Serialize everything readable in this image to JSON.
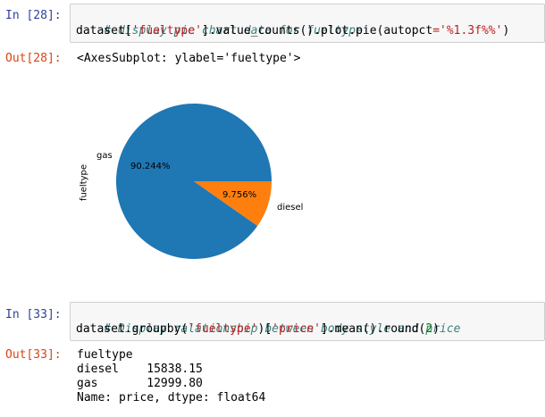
{
  "cells": [
    {
      "in_prompt": "In [28]:",
      "code": {
        "comment": "# display pie chart data for fueltype",
        "l2_a": "dataset[",
        "l2_str1": "'fueltype'",
        "l2_b": "].value_counts().plot.pie(autopct",
        "l2_eq": "=",
        "l2_str2": "'%1.3f%%'",
        "l2_c": ")"
      },
      "out_prompt": "Out[28]:",
      "output_text": "<AxesSubplot: ylabel='fueltype'>"
    },
    {
      "in_prompt": "In [33]:",
      "code": {
        "comment": "# Display ralationship between body style and price",
        "l2_a": "dataset.groupby(",
        "l2_str1": "'fueltype'",
        "l2_b": ")[",
        "l2_str2": "'price'",
        "l2_c": "].mean().round(",
        "l2_num": "2",
        "l2_d": ")"
      },
      "out_prompt": "Out[33]:",
      "output_lines": [
        "fueltype",
        "diesel    15838.15",
        "gas       12999.80",
        "Name: price, dtype: float64"
      ]
    }
  ],
  "chart_data": {
    "type": "pie",
    "ylabel": "fueltype",
    "slices": [
      {
        "label": "gas",
        "value": 90.244,
        "pct_label": "90.244%",
        "color": "#1f77b4"
      },
      {
        "label": "diesel",
        "value": 9.756,
        "pct_label": "9.756%",
        "color": "#ff7f0e"
      }
    ]
  }
}
